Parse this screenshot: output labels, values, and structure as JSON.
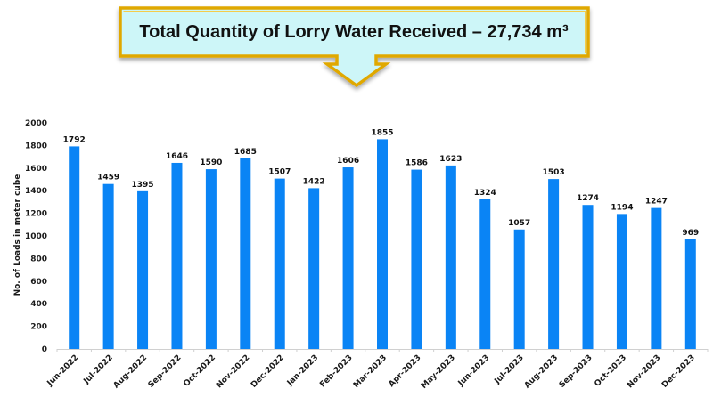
{
  "callout": {
    "text": "Total Quantity of Lorry Water Received – 27,734 m³",
    "fill_color": "#cdf6f8",
    "border_color": "#e0a800",
    "border_dark": "#b8860b"
  },
  "chart_data": {
    "type": "bar",
    "title": "Total Quantity of Lorry Water Received – 27,734 m³",
    "xlabel": "",
    "ylabel": "No. of Loads in meter cube",
    "ylim": [
      0,
      2000
    ],
    "yticks": [
      0,
      200,
      400,
      600,
      800,
      1000,
      1200,
      1400,
      1600,
      1800,
      2000
    ],
    "grid": false,
    "legend": "none",
    "bar_color": "#0a84f5",
    "categories": [
      "Jun-2022",
      "Jul-2022",
      "Aug-2022",
      "Sep-2022",
      "Oct-2022",
      "Nov-2022",
      "Dec-2022",
      "Jan-2023",
      "Feb-2023",
      "Mar-2023",
      "Apr-2023",
      "May-2023",
      "Jun-2023",
      "Jul-2023",
      "Aug-2023",
      "Sep-2023",
      "Oct-2023",
      "Nov-2023",
      "Dec-2023"
    ],
    "values": [
      1792,
      1459,
      1395,
      1646,
      1590,
      1685,
      1507,
      1422,
      1606,
      1855,
      1586,
      1623,
      1324,
      1057,
      1503,
      1274,
      1194,
      1247,
      969
    ],
    "data_labels": true
  }
}
